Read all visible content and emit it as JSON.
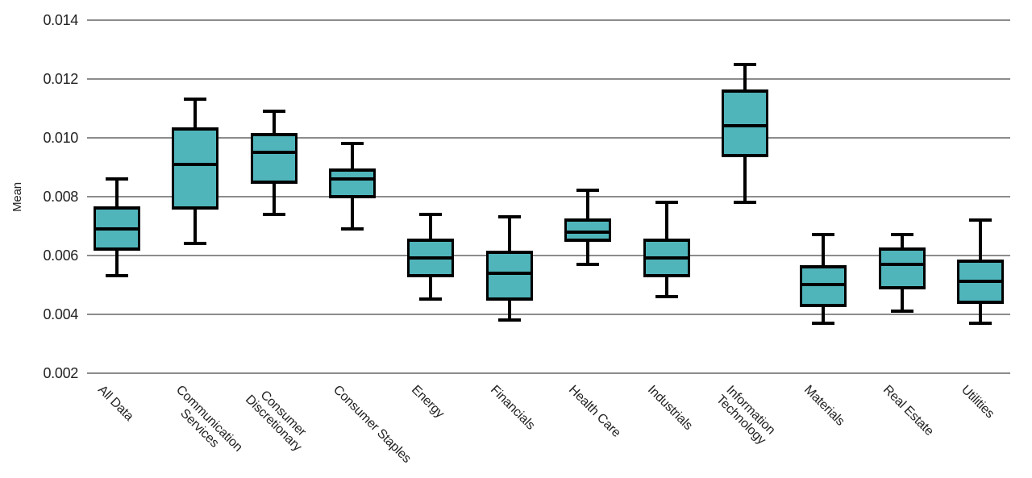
{
  "chart_data": {
    "type": "box",
    "title": "",
    "xlabel": "",
    "ylabel": "Mean",
    "ylim": [
      0.002,
      0.014
    ],
    "yticks": [
      "0.002",
      "0.004",
      "0.006",
      "0.008",
      "0.010",
      "0.012",
      "0.014"
    ],
    "grid": true,
    "legend": false,
    "box_fill_color": "#4FB5BA",
    "box_line_color": "#000000",
    "gridline_color": "#8c8c8c",
    "categories": [
      "All Data",
      "Communication Services",
      "Consumer Discretionary",
      "Consumer Staples",
      "Energy",
      "Financials",
      "Health Care",
      "Industrials",
      "Information Technology",
      "Materials",
      "Real Estate",
      "Utilities"
    ],
    "boxes": [
      {
        "label": "All Data",
        "label_lines": [
          "All Data"
        ],
        "whisker_low": 0.0053,
        "q1": 0.0062,
        "median": 0.0069,
        "q3": 0.0076,
        "whisker_high": 0.0086
      },
      {
        "label": "Communication Services",
        "label_lines": [
          "Communication",
          "Services"
        ],
        "whisker_low": 0.0064,
        "q1": 0.0076,
        "median": 0.0091,
        "q3": 0.0103,
        "whisker_high": 0.0113
      },
      {
        "label": "Consumer Discretionary",
        "label_lines": [
          "Consumer",
          "Discretionary"
        ],
        "whisker_low": 0.0074,
        "q1": 0.0085,
        "median": 0.0095,
        "q3": 0.0101,
        "whisker_high": 0.0109
      },
      {
        "label": "Consumer Staples",
        "label_lines": [
          "Consumer Staples"
        ],
        "whisker_low": 0.0069,
        "q1": 0.008,
        "median": 0.0086,
        "q3": 0.0089,
        "whisker_high": 0.0098
      },
      {
        "label": "Energy",
        "label_lines": [
          "Energy"
        ],
        "whisker_low": 0.0045,
        "q1": 0.0053,
        "median": 0.0059,
        "q3": 0.0065,
        "whisker_high": 0.0074
      },
      {
        "label": "Financials",
        "label_lines": [
          "Financials"
        ],
        "whisker_low": 0.0038,
        "q1": 0.0045,
        "median": 0.0054,
        "q3": 0.0061,
        "whisker_high": 0.0073
      },
      {
        "label": "Health Care",
        "label_lines": [
          "Health Care"
        ],
        "whisker_low": 0.0057,
        "q1": 0.0065,
        "median": 0.0068,
        "q3": 0.0072,
        "whisker_high": 0.0082
      },
      {
        "label": "Industrials",
        "label_lines": [
          "Industrials"
        ],
        "whisker_low": 0.0046,
        "q1": 0.0053,
        "median": 0.0059,
        "q3": 0.0065,
        "whisker_high": 0.0078
      },
      {
        "label": "Information Technology",
        "label_lines": [
          "Information",
          "Technology"
        ],
        "whisker_low": 0.0078,
        "q1": 0.0094,
        "median": 0.0104,
        "q3": 0.0116,
        "whisker_high": 0.0125
      },
      {
        "label": "Materials",
        "label_lines": [
          "Materials"
        ],
        "whisker_low": 0.0037,
        "q1": 0.0043,
        "median": 0.005,
        "q3": 0.0056,
        "whisker_high": 0.0067
      },
      {
        "label": "Real Estate",
        "label_lines": [
          "Real Estate"
        ],
        "whisker_low": 0.0041,
        "q1": 0.0049,
        "median": 0.0057,
        "q3": 0.0062,
        "whisker_high": 0.0067
      },
      {
        "label": "Utilities",
        "label_lines": [
          "Utilities"
        ],
        "whisker_low": 0.0037,
        "q1": 0.0044,
        "median": 0.0051,
        "q3": 0.0058,
        "whisker_high": 0.0072
      }
    ]
  }
}
